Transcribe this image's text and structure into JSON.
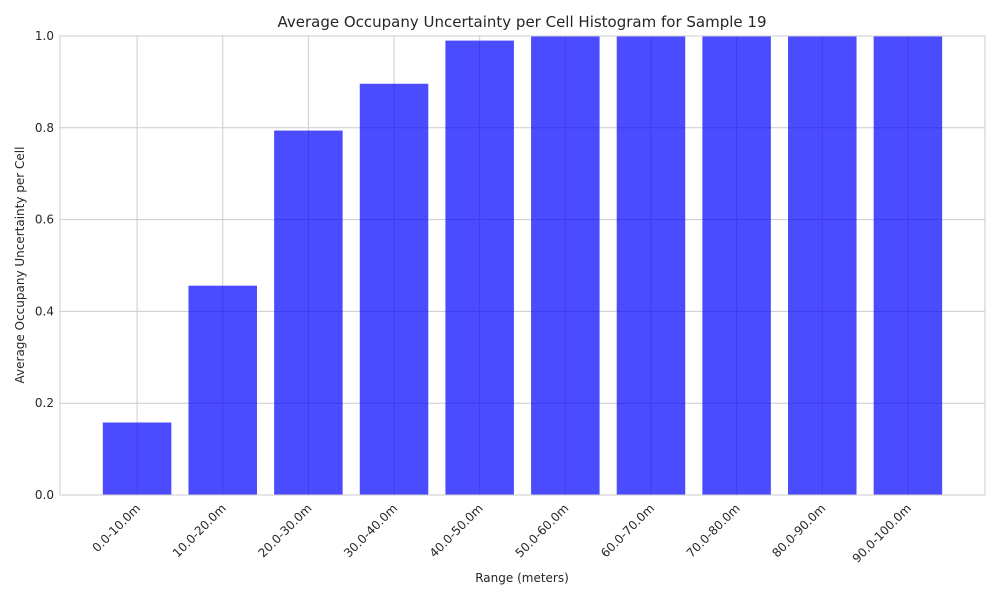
{
  "chart_data": {
    "type": "bar",
    "title": "Average Occupany Uncertainty per Cell Histogram for Sample 19",
    "xlabel": "Range (meters)",
    "ylabel": "Average Occupany Uncertainty per Cell",
    "categories": [
      "0.0-10.0m",
      "10.0-20.0m",
      "20.0-30.0m",
      "30.0-40.0m",
      "40.0-50.0m",
      "50.0-60.0m",
      "60.0-70.0m",
      "70.0-80.0m",
      "80.0-90.0m",
      "90.0-100.0m"
    ],
    "values": [
      0.158,
      0.456,
      0.794,
      0.896,
      0.99,
      1.0,
      1.0,
      1.0,
      1.0,
      1.0
    ],
    "ylim": [
      0,
      1.0
    ],
    "yticks": [
      "0.0",
      "0.2",
      "0.4",
      "0.6",
      "0.8",
      "1.0"
    ],
    "grid": true,
    "bar_color": "#0000ff"
  }
}
